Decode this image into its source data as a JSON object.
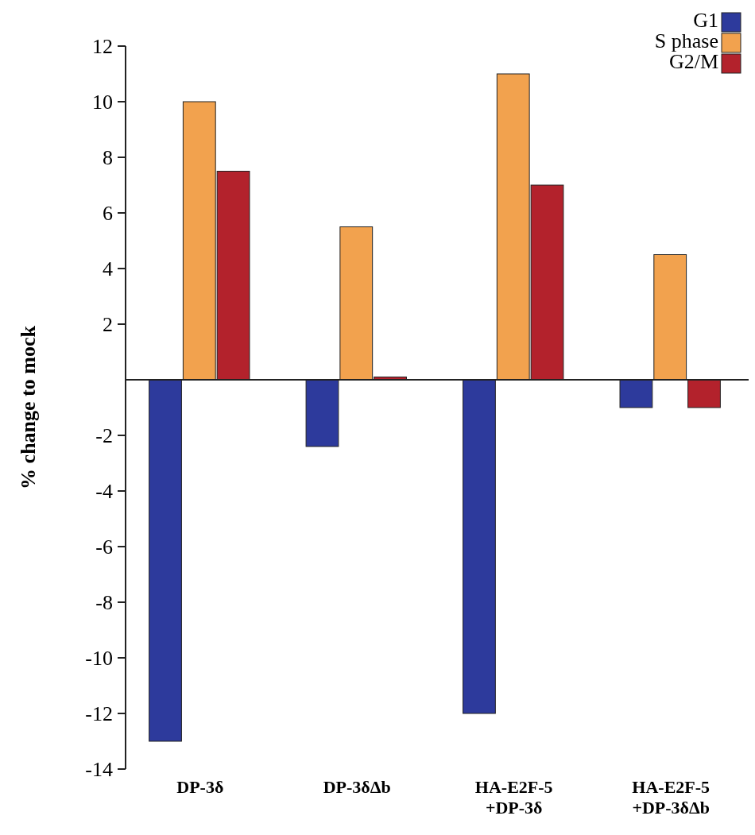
{
  "chart_data": {
    "type": "bar",
    "ylabel": "% change to mock",
    "categories": [
      "DP-3δ",
      "DP-3δΔb",
      "HA-E2F-5\n+DP-3δ",
      "HA-E2F-5\n+DP-3δΔb"
    ],
    "series": [
      {
        "name": "G1",
        "color": "#2d3a9c",
        "values": [
          -13,
          -2.4,
          -12,
          -1
        ]
      },
      {
        "name": "S phase",
        "color": "#f2a24e",
        "values": [
          10,
          5.5,
          11,
          4.5
        ]
      },
      {
        "name": "G2/M",
        "color": "#b3222c",
        "values": [
          7.5,
          0.1,
          7,
          -1
        ]
      }
    ],
    "ylim": [
      -14,
      12
    ],
    "yticks": [
      -14,
      -12,
      -10,
      -8,
      -6,
      -4,
      -2,
      2,
      4,
      6,
      8,
      10,
      12
    ],
    "grid": false,
    "legend": "top right"
  }
}
